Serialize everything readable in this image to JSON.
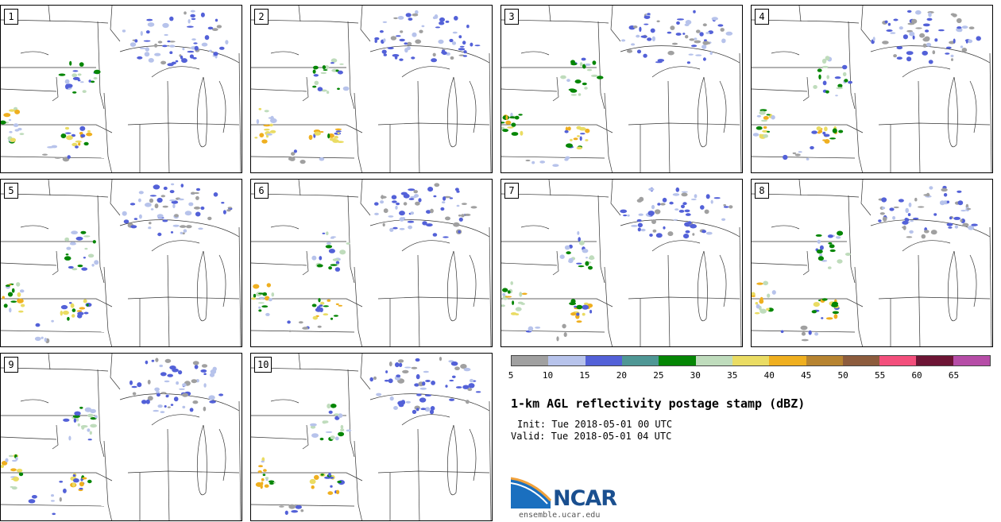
{
  "panels": [
    "1",
    "2",
    "3",
    "4",
    "5",
    "6",
    "7",
    "8",
    "9",
    "10"
  ],
  "colorbar": {
    "colors": [
      "#a0a0a0",
      "#b7c3eb",
      "#5361d8",
      "#4f9795",
      "#058605",
      "#bfdcbc",
      "#eadc63",
      "#efaf1f",
      "#b78431",
      "#8d5c3d",
      "#f34f7c",
      "#6d1535",
      "#b64da7"
    ],
    "ticks": [
      "5",
      "10",
      "15",
      "20",
      "25",
      "30",
      "35",
      "40",
      "45",
      "50",
      "55",
      "60",
      "65"
    ]
  },
  "title": "1-km AGL reflectivity postage stamp (dBZ)",
  "init": "Init: Tue 2018-05-01 00 UTC",
  "valid": "Valid: Tue 2018-05-01 04 UTC",
  "logo": {
    "text": "NCAR",
    "url": "ensemble.ucar.edu"
  },
  "colors": {
    "map_lines": "#333333",
    "logo_blue": "#1a4f8f"
  }
}
